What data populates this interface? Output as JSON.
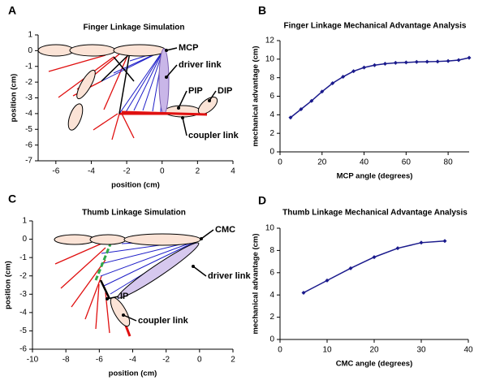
{
  "chart_data": [
    {
      "type": "diagram",
      "label": "A",
      "title": "Finger Linkage Simulation",
      "xlabel": "position (cm)",
      "ylabel": "position (cm)",
      "xlim": [
        -7,
        4
      ],
      "ylim": [
        -7,
        1
      ],
      "xticks": [
        -6,
        -4,
        -2,
        0,
        2,
        4
      ],
      "yticks": [
        1,
        0,
        -1,
        -2,
        -3,
        -4,
        -5,
        -6,
        -7
      ],
      "annotations": [
        "MCP",
        "driver link",
        "PIP",
        "DIP",
        "coupler link"
      ]
    },
    {
      "type": "line",
      "label": "B",
      "title": "Finger Linkage Mechanical Advantage Analysis",
      "xlabel": "MCP angle (degrees)",
      "ylabel": "mechanical advantage (cm)",
      "xlim": [
        0,
        90
      ],
      "ylim": [
        0,
        12
      ],
      "xticks": [
        0,
        20,
        40,
        60,
        80
      ],
      "yticks": [
        0,
        2,
        4,
        6,
        8,
        10,
        12
      ],
      "color": "#1a1a8c",
      "x": [
        5,
        10,
        15,
        20,
        25,
        30,
        35,
        40,
        45,
        50,
        55,
        60,
        65,
        70,
        75,
        80,
        85,
        90
      ],
      "values": [
        3.7,
        4.6,
        5.5,
        6.5,
        7.4,
        8.1,
        8.7,
        9.1,
        9.35,
        9.5,
        9.6,
        9.65,
        9.7,
        9.72,
        9.75,
        9.8,
        9.9,
        10.15
      ]
    },
    {
      "type": "diagram",
      "label": "C",
      "title": "Thumb Linkage Simulation",
      "xlabel": "position (cm)",
      "ylabel": "position (cm)",
      "xlim": [
        -10,
        2
      ],
      "ylim": [
        -6,
        1
      ],
      "xticks": [
        -10,
        -8,
        -6,
        -4,
        -2,
        0,
        2
      ],
      "yticks": [
        1,
        0,
        -1,
        -2,
        -3,
        -4,
        -5,
        -6
      ],
      "annotations": [
        "CMC",
        "driver link",
        "IP",
        "coupler link"
      ]
    },
    {
      "type": "line",
      "label": "D",
      "title": "Thumb Linkage Mechanical Advantage Analysis",
      "xlabel": "CMC angle (degrees)",
      "ylabel": "mechanical advantage (cm)",
      "xlim": [
        0,
        40
      ],
      "ylim": [
        0,
        10
      ],
      "xticks": [
        0,
        10,
        20,
        30,
        40
      ],
      "yticks": [
        0,
        2,
        4,
        6,
        8,
        10
      ],
      "color": "#1a1a8c",
      "x": [
        5,
        10,
        15,
        20,
        25,
        30,
        35
      ],
      "values": [
        4.2,
        5.3,
        6.4,
        7.4,
        8.2,
        8.7,
        8.85
      ]
    }
  ]
}
